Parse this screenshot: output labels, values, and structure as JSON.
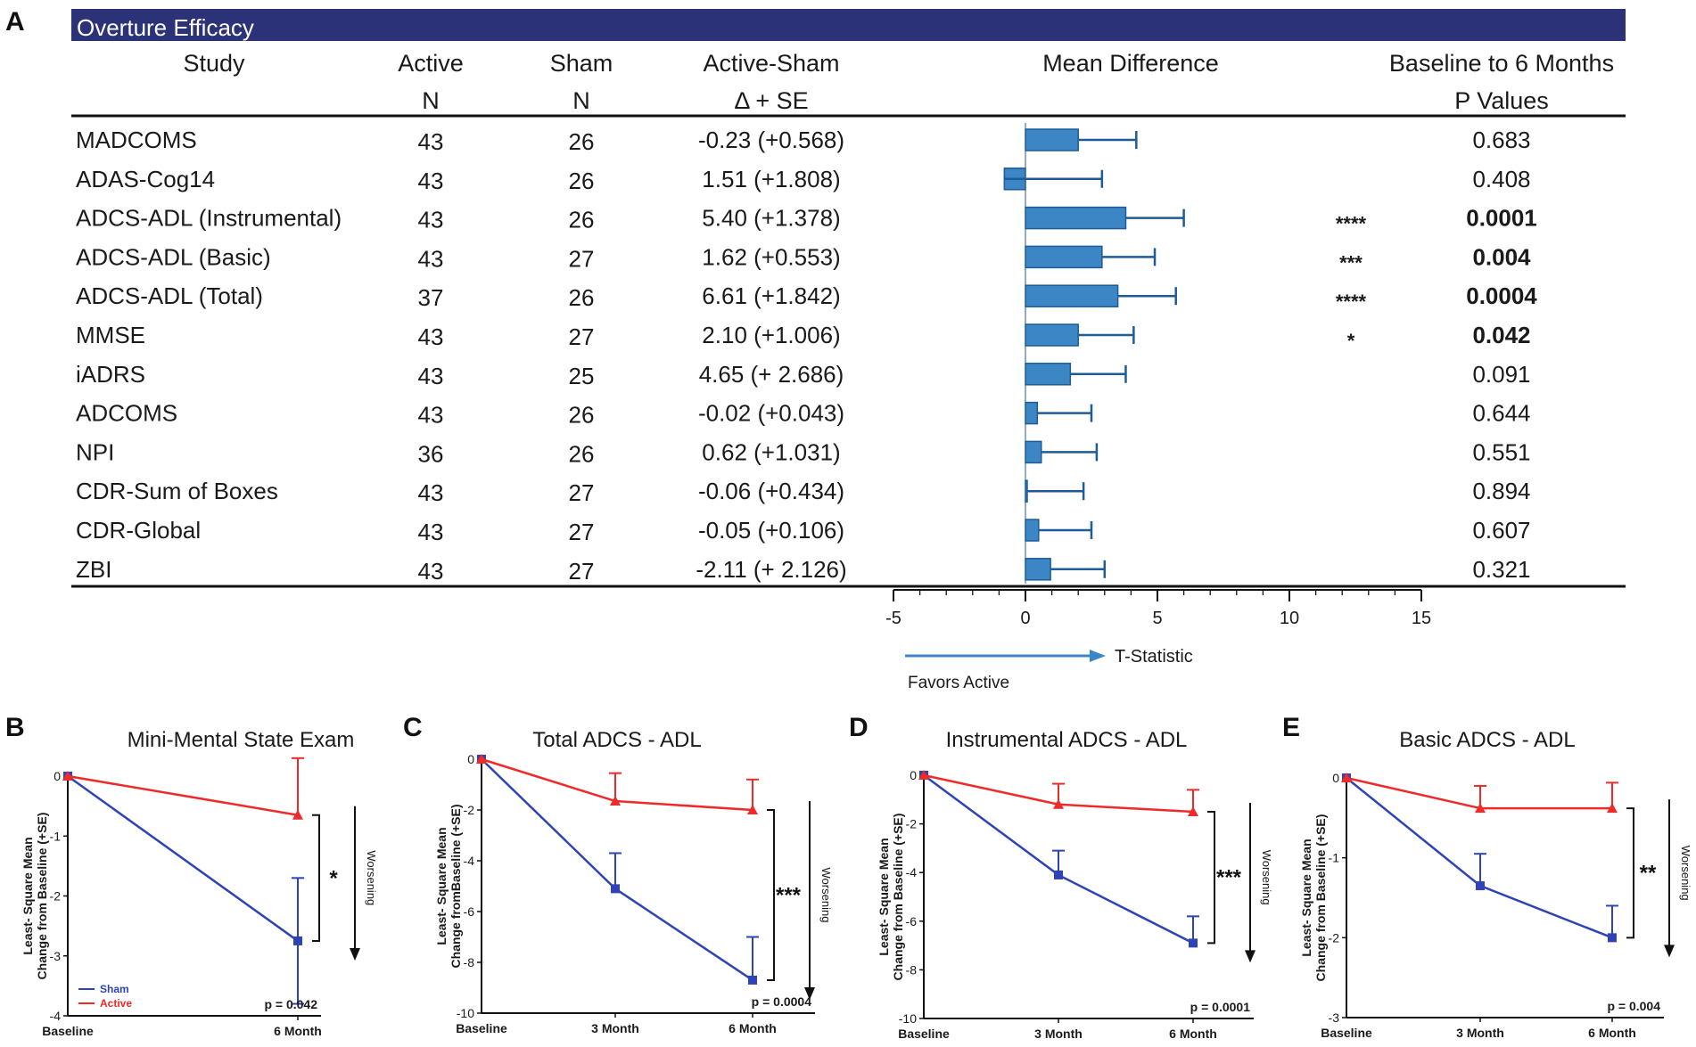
{
  "chart_data": [
    {
      "panel": "A",
      "type": "table",
      "title": "Overture Efficacy",
      "columns": [
        "Study",
        "Active",
        "Sham",
        "Active-Sham",
        "Mean Difference",
        "Baseline to 6 Months"
      ],
      "subcolumns": [
        "",
        "N",
        "N",
        "Δ + SE",
        "",
        "P Values"
      ],
      "rows": [
        {
          "study": "MADCOMS",
          "active_n": "43",
          "sham_n": "26",
          "delta_se": "-0.23 (+0.568)",
          "t": 2.0,
          "t_err": 4.2,
          "stars": "",
          "p": "0.683",
          "bold": false
        },
        {
          "study": "ADAS-Cog14",
          "active_n": "43",
          "sham_n": "26",
          "delta_se": "1.51 (+1.808)",
          "t": -0.8,
          "t_err": 2.9,
          "stars": "",
          "p": "0.408",
          "bold": false
        },
        {
          "study": "ADCS-ADL (Instrumental)",
          "active_n": "43",
          "sham_n": "26",
          "delta_se": "5.40 (+1.378)",
          "t": 3.8,
          "t_err": 6.0,
          "stars": "****",
          "p": "0.0001",
          "bold": true
        },
        {
          "study": "ADCS-ADL (Basic)",
          "active_n": "43",
          "sham_n": "27",
          "delta_se": "1.62 (+0.553)",
          "t": 2.9,
          "t_err": 4.9,
          "stars": "***",
          "p": "0.004",
          "bold": true
        },
        {
          "study": "ADCS-ADL (Total)",
          "active_n": "37",
          "sham_n": "26",
          "delta_se": "6.61 (+1.842)",
          "t": 3.5,
          "t_err": 5.7,
          "stars": "****",
          "p": "0.0004",
          "bold": true
        },
        {
          "study": "MMSE",
          "active_n": "43",
          "sham_n": "27",
          "delta_se": "2.10 (+1.006)",
          "t": 2.0,
          "t_err": 4.1,
          "stars": "*",
          "p": "0.042",
          "bold": true
        },
        {
          "study": "iADRS",
          "active_n": "43",
          "sham_n": "25",
          "delta_se": "4.65 (+ 2.686)",
          "t": 1.7,
          "t_err": 3.8,
          "stars": "",
          "p": "0.091",
          "bold": false
        },
        {
          "study": "ADCOMS",
          "active_n": "43",
          "sham_n": "26",
          "delta_se": "-0.02 (+0.043)",
          "t": 0.45,
          "t_err": 2.5,
          "stars": "",
          "p": "0.644",
          "bold": false
        },
        {
          "study": "NPI",
          "active_n": "36",
          "sham_n": "26",
          "delta_se": "0.62 (+1.031)",
          "t": 0.6,
          "t_err": 2.7,
          "stars": "",
          "p": "0.551",
          "bold": false
        },
        {
          "study": "CDR-Sum of Boxes",
          "active_n": "43",
          "sham_n": "27",
          "delta_se": "-0.06 (+0.434)",
          "t": 0.05,
          "t_err": 2.2,
          "stars": "",
          "p": "0.894",
          "bold": false
        },
        {
          "study": "CDR-Global",
          "active_n": "43",
          "sham_n": "27",
          "delta_se": "-0.05 (+0.106)",
          "t": 0.5,
          "t_err": 2.5,
          "stars": "",
          "p": "0.607",
          "bold": false
        },
        {
          "study": "ZBI",
          "active_n": "43",
          "sham_n": "27",
          "delta_se": "-2.11 (+ 2.126)",
          "t": 0.95,
          "t_err": 3.0,
          "stars": "",
          "p": "0.321",
          "bold": false
        }
      ],
      "xaxis": {
        "min": -5,
        "max": 15,
        "ticks": [
          "-5",
          "0",
          "5",
          "10",
          "15"
        ],
        "label": "T-Statistic",
        "arrow_label": "Favors Active"
      }
    },
    {
      "panel": "B",
      "type": "line",
      "title": "Mini-Mental State Exam",
      "ylabel": [
        "Least- Square Mean",
        "Change from Baseline (+SE)"
      ],
      "ylim": [
        -4,
        0
      ],
      "yticks": [
        "0",
        "-1",
        "-2",
        "-3",
        "-4"
      ],
      "categories": [
        "Baseline",
        "6 Month"
      ],
      "series": [
        {
          "name": "Sham",
          "color": "#2e43b8",
          "values": [
            0,
            -2.75
          ],
          "err": [
            0,
            1.05
          ]
        },
        {
          "name": "Active",
          "color": "#ee2a2a",
          "values": [
            0,
            -0.65
          ],
          "err": [
            0,
            0.95
          ]
        }
      ],
      "sig": "*",
      "p": "p = 0.042",
      "arrow": "Worsening",
      "legend": [
        "Sham",
        "Active"
      ]
    },
    {
      "panel": "C",
      "type": "line",
      "title": "Total ADCS - ADL",
      "ylabel": [
        "Least- Square Mean",
        "Change fromBaseline (+SE)"
      ],
      "ylim": [
        -10,
        0
      ],
      "yticks": [
        "0",
        "-2",
        "-4",
        "-6",
        "-8",
        "-10"
      ],
      "categories": [
        "Baseline",
        "3 Month",
        "6 Month"
      ],
      "series": [
        {
          "name": "Sham",
          "color": "#2e43b8",
          "values": [
            0,
            -5.1,
            -8.7
          ],
          "err": [
            0,
            1.4,
            1.7
          ]
        },
        {
          "name": "Active",
          "color": "#ee2a2a",
          "values": [
            0,
            -1.65,
            -2.0
          ],
          "err": [
            0,
            1.1,
            1.2
          ]
        }
      ],
      "sig": "***",
      "p": "p = 0.0004",
      "arrow": "Worsening"
    },
    {
      "panel": "D",
      "type": "line",
      "title": "Instrumental ADCS - ADL",
      "ylabel": [
        "Least- Square Mean",
        "Change from Baseline (+SE)"
      ],
      "ylim": [
        -10,
        0
      ],
      "yticks": [
        "0",
        "-2",
        "-4",
        "-6",
        "-8",
        "-10"
      ],
      "categories": [
        "Baseline",
        "3 Month",
        "6 Month"
      ],
      "series": [
        {
          "name": "Sham",
          "color": "#2e43b8",
          "values": [
            0,
            -4.1,
            -6.9
          ],
          "err": [
            0,
            1.0,
            1.1
          ]
        },
        {
          "name": "Active",
          "color": "#ee2a2a",
          "values": [
            0,
            -1.2,
            -1.5
          ],
          "err": [
            0,
            0.85,
            0.9
          ]
        }
      ],
      "sig": "***",
      "p": "p = 0.0001",
      "arrow": "Worsening"
    },
    {
      "panel": "E",
      "type": "line",
      "title": "Basic ADCS - ADL",
      "ylabel": [
        "Least- Square Mean",
        "Change from Baseline (+SE)"
      ],
      "ylim": [
        -3,
        0
      ],
      "yticks": [
        "0",
        "-1",
        "-2",
        "-3"
      ],
      "categories": [
        "Baseline",
        "3 Month",
        "6 Month"
      ],
      "series": [
        {
          "name": "Sham",
          "color": "#2e43b8",
          "values": [
            0,
            -1.35,
            -2.0
          ],
          "err": [
            0,
            0.4,
            0.4
          ]
        },
        {
          "name": "Active",
          "color": "#ee2a2a",
          "values": [
            0,
            -0.38,
            -0.38
          ],
          "err": [
            0,
            0.28,
            0.32
          ]
        }
      ],
      "sig": "**",
      "p": "p = 0.004",
      "arrow": "Worsening"
    }
  ],
  "colors": {
    "header_band": "#2b3278",
    "bar": "#3d86c6",
    "bar_stroke": "#1f5b96",
    "sham": "#2e43b8",
    "active": "#ee2a2a"
  }
}
